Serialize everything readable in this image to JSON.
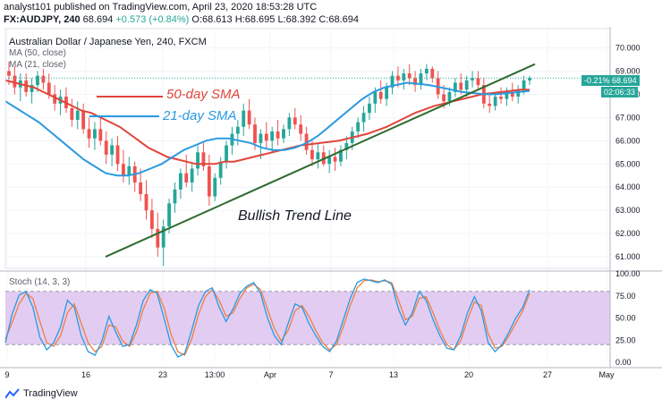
{
  "header": {
    "line1_prefix": "analyst101 published on TradingView.com, April 23, 2020 18:53:28 UTC",
    "symbol": "FX:AUDJPY, 240",
    "last": "68.694",
    "change": "+0.573 (+0.84%)",
    "open": "O:68.613",
    "high": "H:68.695",
    "low": "L:68.392",
    "close": "C:68.694",
    "pair_title": "Australian Dollar / Japanese Yen, 240, FXCM",
    "ma50": "MA (50, close)",
    "ma21": "MA (21, close)"
  },
  "annotations": {
    "sma50": "50-day SMA",
    "sma21": "21-day SMA",
    "trend": "Bullish Trend Line"
  },
  "price_tag": {
    "pct": "-0.21%",
    "price": "68.694",
    "countdown": "02:06:33"
  },
  "stoch_label": "Stoch (14, 3, 3)",
  "brand": "TradingView",
  "colors": {
    "bull": "#26a69a",
    "bear": "#ef5350",
    "ma50": "#e0453a",
    "ma21": "#2a9ae0",
    "trend": "#2f6b2f",
    "stoch_k": "#2a9ae0",
    "stoch_d": "#ef7f3f",
    "stoch_band": "#e3ccf2"
  },
  "chart_data": [
    {
      "type": "candlestick",
      "title": "Australian Dollar / Japanese Yen, 240, FXCM",
      "y_ticks": [
        "70.000",
        "69.000",
        "68.000",
        "67.000",
        "66.000",
        "65.000",
        "64.000",
        "63.000",
        "62.000",
        "61.000"
      ],
      "x_ticks": [
        "9",
        "16",
        "23",
        "13:00",
        "Apr",
        "7",
        "13",
        "20",
        "27",
        "May"
      ],
      "ylim": [
        60.5,
        70.6
      ],
      "ohlc": [
        [
          69.0,
          69.4,
          68.4,
          68.8
        ],
        [
          68.8,
          69.2,
          68.0,
          68.3
        ],
        [
          68.3,
          68.9,
          67.7,
          68.6
        ],
        [
          68.6,
          68.9,
          67.9,
          68.1
        ],
        [
          68.1,
          68.7,
          67.6,
          68.4
        ],
        [
          68.4,
          69.0,
          68.1,
          68.8
        ],
        [
          68.8,
          69.1,
          68.2,
          68.5
        ],
        [
          68.5,
          68.9,
          67.8,
          68.0
        ],
        [
          68.0,
          68.4,
          67.3,
          67.6
        ],
        [
          67.6,
          68.2,
          67.1,
          67.9
        ],
        [
          67.9,
          68.3,
          67.2,
          67.4
        ],
        [
          67.4,
          67.8,
          66.6,
          66.9
        ],
        [
          66.9,
          67.7,
          66.5,
          67.3
        ],
        [
          67.3,
          67.6,
          66.3,
          66.5
        ],
        [
          66.5,
          67.0,
          65.7,
          66.1
        ],
        [
          66.1,
          66.8,
          65.6,
          66.5
        ],
        [
          66.5,
          67.0,
          65.8,
          66.0
        ],
        [
          66.0,
          66.4,
          65.0,
          65.4
        ],
        [
          65.4,
          66.1,
          64.9,
          65.8
        ],
        [
          65.8,
          66.2,
          64.7,
          65.0
        ],
        [
          65.0,
          65.6,
          64.2,
          64.5
        ],
        [
          64.5,
          65.3,
          64.1,
          64.9
        ],
        [
          64.9,
          65.1,
          63.8,
          64.2
        ],
        [
          64.2,
          64.8,
          63.4,
          63.7
        ],
        [
          63.7,
          64.3,
          62.6,
          63.0
        ],
        [
          63.0,
          63.5,
          61.8,
          62.2
        ],
        [
          62.2,
          62.9,
          61.0,
          61.4
        ],
        [
          61.4,
          62.6,
          60.6,
          62.3
        ],
        [
          62.3,
          63.5,
          62.0,
          63.3
        ],
        [
          63.3,
          64.2,
          62.9,
          63.9
        ],
        [
          63.9,
          64.8,
          63.5,
          64.6
        ],
        [
          64.6,
          65.4,
          64.0,
          64.2
        ],
        [
          64.2,
          65.0,
          63.8,
          64.8
        ],
        [
          64.8,
          65.8,
          64.5,
          65.5
        ],
        [
          65.5,
          65.9,
          64.7,
          64.9
        ],
        [
          64.9,
          65.4,
          63.2,
          63.6
        ],
        [
          63.6,
          64.6,
          63.4,
          64.4
        ],
        [
          64.4,
          65.3,
          64.1,
          65.1
        ],
        [
          65.1,
          66.0,
          64.8,
          65.8
        ],
        [
          65.8,
          66.6,
          65.4,
          66.3
        ],
        [
          66.3,
          66.9,
          65.8,
          66.6
        ],
        [
          66.6,
          67.6,
          66.2,
          67.3
        ],
        [
          67.3,
          67.8,
          66.5,
          66.7
        ],
        [
          66.7,
          67.0,
          65.6,
          65.9
        ],
        [
          65.9,
          66.5,
          65.2,
          66.3
        ],
        [
          66.3,
          66.8,
          65.7,
          66.0
        ],
        [
          66.0,
          66.6,
          65.5,
          66.4
        ],
        [
          66.4,
          66.9,
          65.8,
          66.1
        ],
        [
          66.1,
          66.7,
          65.9,
          66.5
        ],
        [
          66.5,
          67.2,
          66.2,
          67.0
        ],
        [
          67.0,
          67.4,
          66.5,
          66.7
        ],
        [
          66.7,
          67.1,
          66.0,
          66.3
        ],
        [
          66.3,
          66.6,
          65.4,
          65.6
        ],
        [
          65.6,
          66.0,
          64.9,
          65.2
        ],
        [
          65.2,
          65.9,
          64.8,
          65.5
        ],
        [
          65.5,
          65.8,
          64.9,
          65.0
        ],
        [
          65.0,
          65.6,
          64.6,
          65.3
        ],
        [
          65.3,
          65.7,
          64.7,
          65.1
        ],
        [
          65.1,
          65.8,
          64.9,
          65.6
        ],
        [
          65.6,
          66.2,
          65.2,
          65.9
        ],
        [
          65.9,
          66.6,
          65.6,
          66.4
        ],
        [
          66.4,
          67.0,
          66.1,
          66.8
        ],
        [
          66.8,
          67.5,
          66.4,
          67.2
        ],
        [
          67.2,
          67.9,
          66.9,
          67.6
        ],
        [
          67.6,
          68.3,
          67.2,
          68.1
        ],
        [
          68.1,
          68.6,
          67.6,
          67.8
        ],
        [
          67.8,
          68.5,
          67.5,
          68.3
        ],
        [
          68.3,
          69.0,
          68.0,
          68.8
        ],
        [
          68.8,
          69.2,
          68.3,
          68.6
        ],
        [
          68.6,
          69.1,
          68.2,
          68.9
        ],
        [
          68.9,
          69.3,
          68.4,
          68.7
        ],
        [
          68.7,
          69.0,
          68.1,
          68.4
        ],
        [
          68.4,
          69.1,
          68.2,
          68.9
        ],
        [
          68.9,
          69.3,
          68.6,
          69.1
        ],
        [
          69.1,
          69.2,
          68.5,
          68.7
        ],
        [
          68.7,
          69.0,
          67.8,
          68.0
        ],
        [
          68.0,
          68.4,
          67.4,
          67.7
        ],
        [
          67.7,
          68.3,
          67.5,
          68.1
        ],
        [
          68.1,
          68.7,
          67.9,
          68.5
        ],
        [
          68.5,
          68.9,
          68.0,
          68.2
        ],
        [
          68.2,
          68.8,
          67.9,
          68.6
        ],
        [
          68.6,
          69.0,
          68.3,
          68.7
        ],
        [
          68.7,
          69.0,
          68.2,
          68.4
        ],
        [
          68.4,
          68.7,
          67.4,
          67.6
        ],
        [
          67.6,
          68.0,
          67.2,
          67.5
        ],
        [
          67.5,
          68.1,
          67.3,
          67.9
        ],
        [
          67.9,
          68.3,
          67.6,
          67.8
        ],
        [
          67.8,
          68.3,
          67.5,
          68.1
        ],
        [
          68.1,
          68.5,
          67.7,
          67.9
        ],
        [
          67.9,
          68.4,
          67.6,
          68.2
        ],
        [
          68.2,
          68.8,
          68.0,
          68.6
        ],
        [
          68.6,
          68.8,
          68.4,
          68.7
        ]
      ],
      "ma50": [
        68.6,
        68.5,
        68.4,
        68.3,
        68.1,
        67.9,
        67.7,
        67.5,
        67.3,
        67.2,
        67.0,
        66.8,
        66.6,
        66.3,
        66.0,
        65.7,
        65.5,
        65.3,
        65.2,
        65.1,
        65.0,
        65.0,
        65.0,
        65.1,
        65.1,
        65.2,
        65.3,
        65.4,
        65.5,
        65.6,
        65.7,
        65.8,
        65.85,
        65.9,
        65.95,
        66.0,
        66.1,
        66.2,
        66.3,
        66.45,
        66.6,
        66.8,
        67.0,
        67.2,
        67.35,
        67.5,
        67.6,
        67.7,
        67.8,
        67.9,
        68.0,
        68.05,
        68.1,
        68.15,
        68.2,
        68.2
      ],
      "ma21": [
        67.7,
        67.4,
        67.1,
        66.8,
        66.4,
        66.0,
        65.6,
        65.2,
        64.9,
        64.6,
        64.5,
        64.5,
        64.6,
        64.8,
        65.0,
        65.3,
        65.6,
        65.8,
        66.0,
        66.1,
        66.1,
        66.0,
        65.9,
        65.7,
        65.6,
        65.6,
        65.7,
        65.9,
        66.2,
        66.6,
        67.0,
        67.4,
        67.8,
        68.1,
        68.3,
        68.4,
        68.5,
        68.45,
        68.4,
        68.3,
        68.2,
        68.1,
        68.05,
        68.0,
        68.0,
        68.05,
        68.1,
        68.15
      ],
      "stoch_ylim": [
        0,
        100
      ],
      "stoch_y_ticks": [
        "100.00",
        "75.00",
        "50.00",
        "25.00",
        "0.00"
      ],
      "stoch_bands": [
        20,
        80
      ],
      "stoch_k": [
        22,
        55,
        76,
        80,
        62,
        28,
        14,
        22,
        40,
        70,
        62,
        30,
        12,
        8,
        24,
        52,
        34,
        18,
        20,
        42,
        70,
        82,
        78,
        50,
        20,
        6,
        10,
        36,
        64,
        80,
        84,
        62,
        46,
        60,
        78,
        86,
        90,
        78,
        50,
        30,
        20,
        44,
        66,
        62,
        44,
        30,
        18,
        12,
        24,
        48,
        72,
        90,
        94,
        92,
        90,
        93,
        88,
        60,
        42,
        56,
        80,
        70,
        48,
        30,
        16,
        14,
        30,
        56,
        74,
        58,
        22,
        12,
        20,
        34,
        50,
        62,
        82
      ],
      "stoch_d": [
        26,
        45,
        66,
        78,
        72,
        46,
        22,
        18,
        30,
        56,
        66,
        44,
        22,
        12,
        18,
        42,
        40,
        24,
        18,
        34,
        60,
        78,
        80,
        62,
        32,
        12,
        8,
        26,
        54,
        74,
        82,
        70,
        52,
        56,
        72,
        84,
        88,
        82,
        60,
        38,
        24,
        36,
        58,
        64,
        52,
        36,
        22,
        14,
        20,
        40,
        64,
        84,
        92,
        93,
        91,
        92,
        90,
        70,
        48,
        52,
        72,
        74,
        56,
        36,
        20,
        14,
        24,
        48,
        68,
        64,
        32,
        16,
        18,
        30,
        44,
        58,
        78
      ]
    }
  ]
}
